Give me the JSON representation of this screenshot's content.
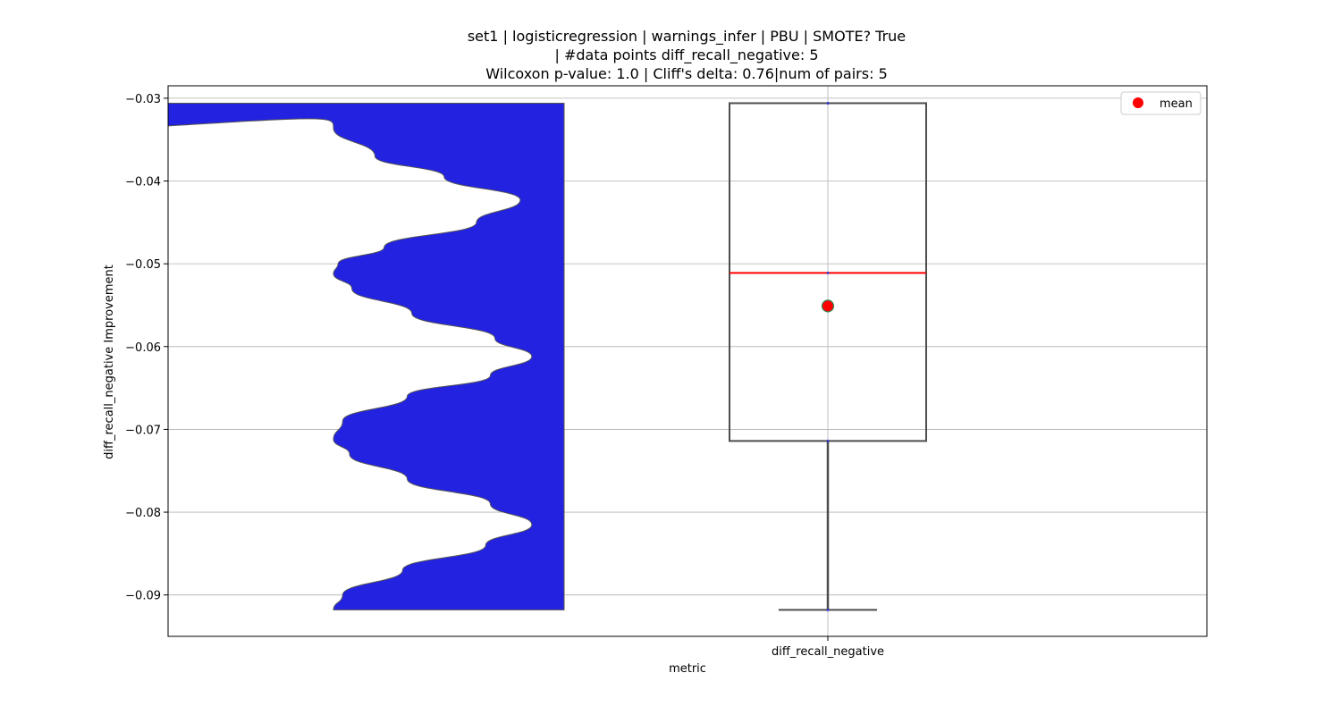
{
  "chart_data": {
    "type": "violin+box",
    "title_lines": [
      "set1 | logisticregression | warnings_infer | PBU | SMOTE? True",
      "| #data points diff_recall_negative: 5",
      "Wilcoxon p-value: 1.0 | Cliff's delta: 0.76|num of pairs: 5"
    ],
    "xlabel": "metric",
    "ylabel": "diff_recall_negative Improvement",
    "categories": [
      "diff_recall_negative"
    ],
    "ylim": [
      -0.095,
      -0.0285
    ],
    "yticks": [
      -0.03,
      -0.04,
      -0.05,
      -0.06,
      -0.07,
      -0.08,
      -0.09
    ],
    "ytick_labels": [
      "−0.03",
      "−0.04",
      "−0.05",
      "−0.06",
      "−0.07",
      "−0.08",
      "−0.09"
    ],
    "grid": true,
    "legend": {
      "position": "top-right",
      "entries": [
        {
          "label": "mean",
          "marker": "circle",
          "color": "#ff0000"
        }
      ]
    },
    "violin": {
      "color": "#2222e0",
      "edge_color": "#555555",
      "profile": [
        [
          -0.0306,
          0.995
        ],
        [
          -0.0336,
          1.0
        ],
        [
          -0.037,
          0.82
        ],
        [
          -0.0395,
          0.52
        ],
        [
          -0.0423,
          0.19
        ],
        [
          -0.045,
          0.38
        ],
        [
          -0.048,
          0.78
        ],
        [
          -0.05,
          0.98
        ],
        [
          -0.0512,
          1.0
        ],
        [
          -0.053,
          0.92
        ],
        [
          -0.056,
          0.66
        ],
        [
          -0.059,
          0.3
        ],
        [
          -0.0612,
          0.14
        ],
        [
          -0.0635,
          0.32
        ],
        [
          -0.066,
          0.68
        ],
        [
          -0.069,
          0.96
        ],
        [
          -0.0712,
          1.0
        ],
        [
          -0.073,
          0.93
        ],
        [
          -0.076,
          0.68
        ],
        [
          -0.079,
          0.32
        ],
        [
          -0.0815,
          0.14
        ],
        [
          -0.084,
          0.34
        ],
        [
          -0.087,
          0.7
        ],
        [
          -0.09,
          0.96
        ],
        [
          -0.0918,
          1.0
        ]
      ]
    },
    "box": {
      "q1": -0.0714,
      "median": -0.0511,
      "q3": -0.0306,
      "whisker_low": -0.0918,
      "whisker_high": -0.0306,
      "mean": -0.0551,
      "box_edge_color": "#4d4d4d",
      "median_color": "#ff0000",
      "mean_color": "#ff0000",
      "mean_edge_color": "#2e8b57"
    },
    "points": [
      -0.0306,
      -0.0511,
      -0.0714,
      -0.0918,
      -0.0306
    ]
  }
}
